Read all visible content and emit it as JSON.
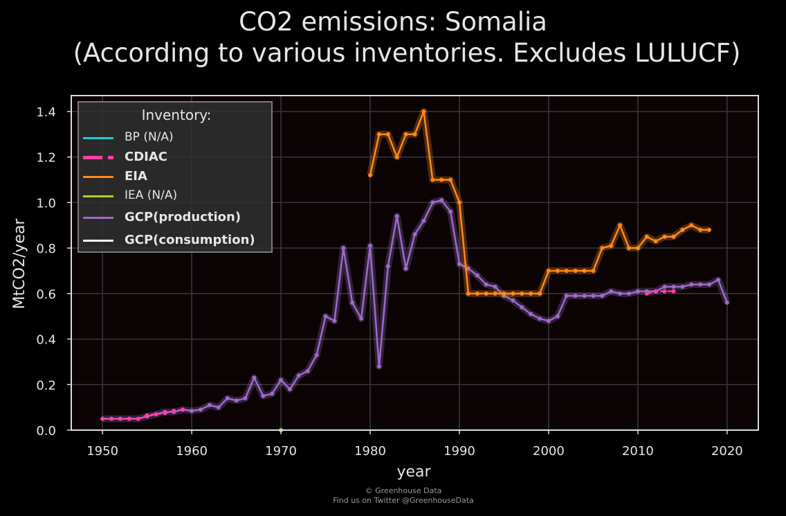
{
  "title_line1": "CO2 emissions: Somalia",
  "title_line2": "(According to various inventories. Excludes LULUCF)",
  "credit_line1": "© Greenhouse Data",
  "credit_line2": "Find us on Twitter @GreenhouseData",
  "legend": {
    "title": "Inventory:",
    "items": [
      {
        "label": "BP (N/A)",
        "color": "#17d3d3",
        "bold": false,
        "dashed": false
      },
      {
        "label": "CDIAC",
        "color": "#ff3fa4",
        "bold": true,
        "dashed": true
      },
      {
        "label": "EIA",
        "color": "#ff8a1c",
        "bold": true,
        "dashed": false
      },
      {
        "label": "IEA (N/A)",
        "color": "#b5cf1a",
        "bold": false,
        "dashed": false
      },
      {
        "label": "GCP(production)",
        "color": "#9c6cc8",
        "bold": true,
        "dashed": false
      },
      {
        "label": "GCP(consumption)",
        "color": "#ffffff",
        "bold": true,
        "dashed": false
      }
    ]
  },
  "chart_data": {
    "type": "line",
    "title": "CO2 emissions: Somalia (According to various inventories. Excludes LULUCF)",
    "xlabel": "year",
    "ylabel": "MtCO2/year",
    "xlim": [
      1946.5,
      2023.5
    ],
    "ylim": [
      0,
      1.47
    ],
    "xticks": [
      1950,
      1960,
      1970,
      1980,
      1990,
      2000,
      2010,
      2020
    ],
    "yticks": [
      0.0,
      0.2,
      0.4,
      0.6,
      0.8,
      1.0,
      1.2,
      1.4
    ],
    "ytick_labels": [
      "0.0",
      "0.2",
      "0.4",
      "0.6",
      "0.8",
      "1.0",
      "1.2",
      "1.4"
    ],
    "grid": true,
    "legend_position": "top-left",
    "series": [
      {
        "name": "GCP(production)",
        "color": "#9c6cc8",
        "x": [
          1950,
          1951,
          1952,
          1953,
          1954,
          1955,
          1956,
          1957,
          1958,
          1959,
          1960,
          1961,
          1962,
          1963,
          1964,
          1965,
          1966,
          1967,
          1968,
          1969,
          1970,
          1971,
          1972,
          1973,
          1974,
          1975,
          1976,
          1977,
          1978,
          1979,
          1980,
          1981,
          1982,
          1983,
          1984,
          1985,
          1986,
          1987,
          1988,
          1989,
          1990,
          1991,
          1992,
          1993,
          1994,
          1995,
          1996,
          1997,
          1998,
          1999,
          2000,
          2001,
          2002,
          2003,
          2004,
          2005,
          2006,
          2007,
          2008,
          2009,
          2010,
          2011,
          2012,
          2013,
          2014,
          2015,
          2016,
          2017,
          2018,
          2019,
          2020
        ],
        "y": [
          0.05,
          0.05,
          0.05,
          0.05,
          0.05,
          0.06,
          0.07,
          0.08,
          0.08,
          0.09,
          0.085,
          0.09,
          0.11,
          0.1,
          0.14,
          0.13,
          0.14,
          0.23,
          0.15,
          0.16,
          0.22,
          0.18,
          0.24,
          0.26,
          0.33,
          0.5,
          0.48,
          0.8,
          0.56,
          0.49,
          0.81,
          0.28,
          0.72,
          0.94,
          0.71,
          0.86,
          0.92,
          1.0,
          1.01,
          0.96,
          0.73,
          0.71,
          0.68,
          0.64,
          0.63,
          0.59,
          0.57,
          0.54,
          0.51,
          0.49,
          0.48,
          0.5,
          0.59,
          0.59,
          0.59,
          0.59,
          0.59,
          0.61,
          0.6,
          0.6,
          0.61,
          0.61,
          0.61,
          0.63,
          0.63,
          0.63,
          0.64,
          0.64,
          0.64,
          0.66,
          0.56
        ]
      },
      {
        "name": "EIA",
        "color": "#ff8a1c",
        "x": [
          1980,
          1981,
          1982,
          1983,
          1984,
          1985,
          1986,
          1987,
          1988,
          1989,
          1990,
          1991,
          1992,
          1993,
          1994,
          1995,
          1996,
          1997,
          1998,
          1999,
          2000,
          2001,
          2002,
          2003,
          2004,
          2005,
          2006,
          2007,
          2008,
          2009,
          2010,
          2011,
          2012,
          2013,
          2014,
          2015,
          2016,
          2017,
          2018
        ],
        "y": [
          1.12,
          1.3,
          1.3,
          1.2,
          1.3,
          1.3,
          1.4,
          1.1,
          1.1,
          1.1,
          1.0,
          0.6,
          0.6,
          0.6,
          0.6,
          0.6,
          0.6,
          0.6,
          0.6,
          0.6,
          0.7,
          0.7,
          0.7,
          0.7,
          0.7,
          0.7,
          0.8,
          0.81,
          0.9,
          0.8,
          0.8,
          0.85,
          0.83,
          0.85,
          0.85,
          0.88,
          0.9,
          0.88,
          0.88
        ]
      },
      {
        "name": "CDIAC",
        "color": "#ff3fa4",
        "x": [
          1950,
          1951,
          1952,
          1953,
          1954,
          1955,
          1956,
          1957,
          1958,
          1959,
          2011,
          2012,
          2013,
          2014
        ],
        "y": [
          0.05,
          0.05,
          0.05,
          0.05,
          0.05,
          0.065,
          0.07,
          0.075,
          0.085,
          0.09,
          0.6,
          0.61,
          0.61,
          0.61
        ]
      },
      {
        "name": "IEA (N/A)",
        "color": "#b5cf1a",
        "x": [
          1970
        ],
        "y": [
          0.0
        ]
      }
    ]
  }
}
